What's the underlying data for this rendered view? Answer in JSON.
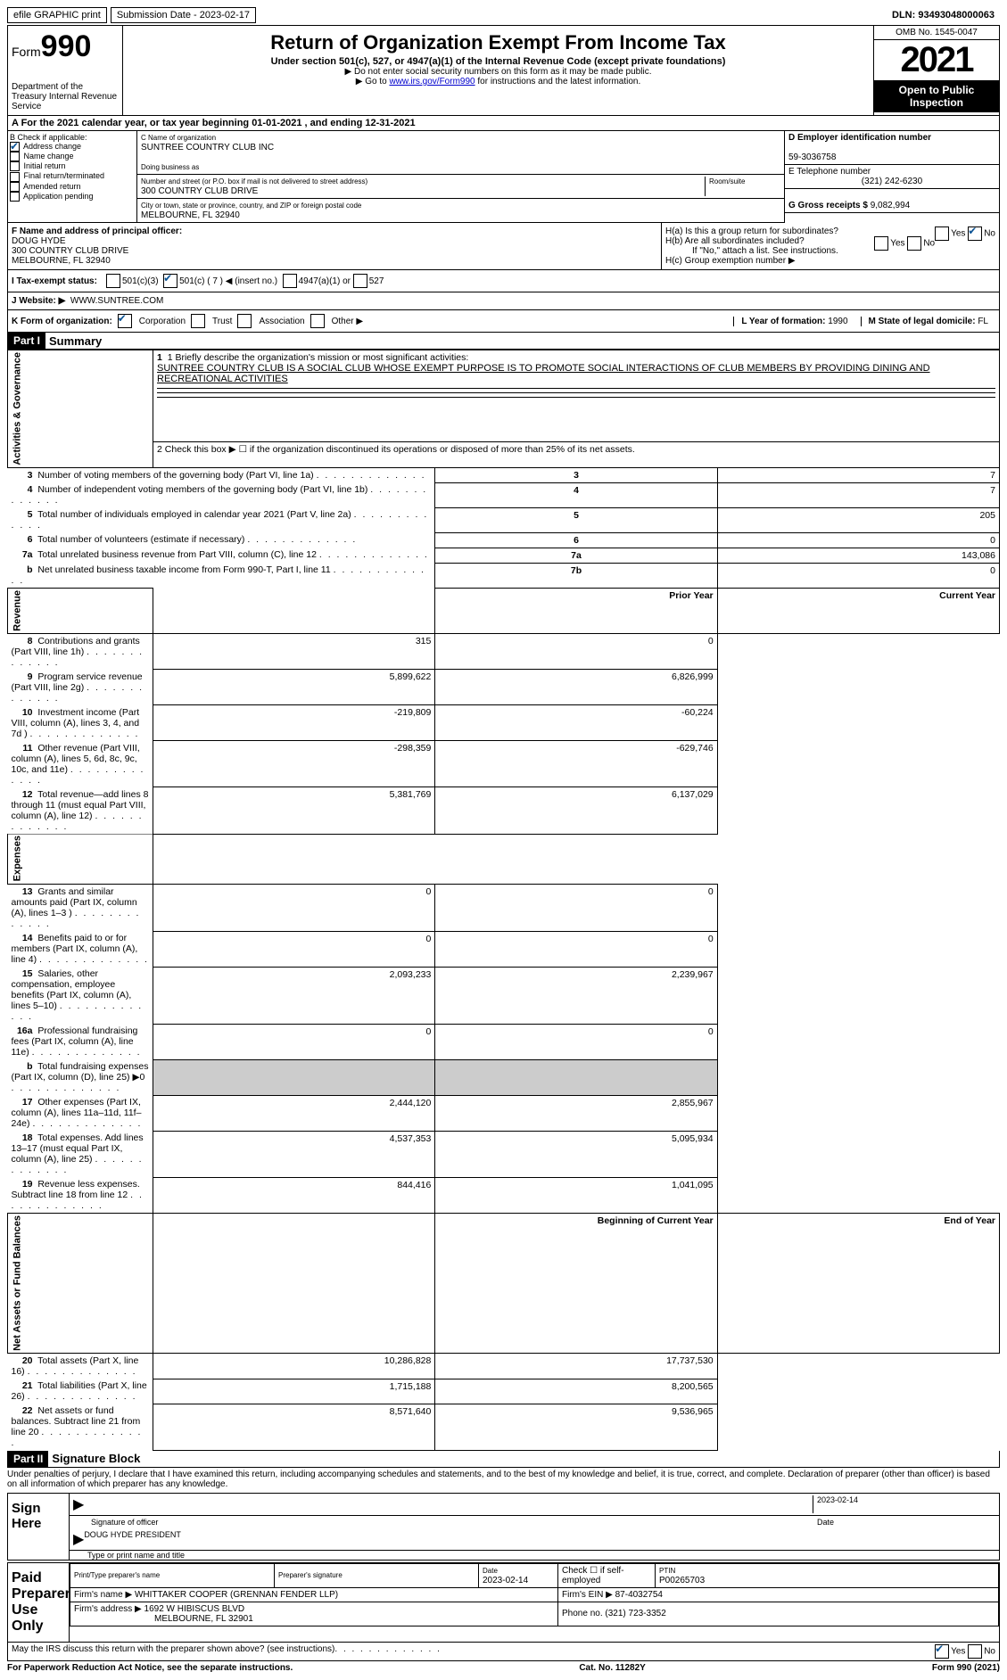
{
  "topbar": {
    "efile": "efile GRAPHIC print",
    "submission_label": "Submission Date - 2023-02-17",
    "dln_label": "DLN: 93493048000063"
  },
  "header": {
    "form_prefix": "Form",
    "form_no": "990",
    "dept": "Department of the Treasury Internal Revenue Service",
    "title": "Return of Organization Exempt From Income Tax",
    "subtitle": "Under section 501(c), 527, or 4947(a)(1) of the Internal Revenue Code (except private foundations)",
    "note1": "▶ Do not enter social security numbers on this form as it may be made public.",
    "note2_pre": "▶ Go to ",
    "note2_link": "www.irs.gov/Form990",
    "note2_post": " for instructions and the latest information.",
    "omb": "OMB No. 1545-0047",
    "year": "2021",
    "open": "Open to Public Inspection"
  },
  "period": "A For the 2021 calendar year, or tax year beginning 01-01-2021    , and ending 12-31-2021",
  "box_b": {
    "label": "B Check if applicable:",
    "items": [
      "Address change",
      "Name change",
      "Initial return",
      "Final return/terminated",
      "Amended return",
      "Application pending"
    ],
    "checked": [
      true,
      false,
      false,
      false,
      false,
      false
    ]
  },
  "box_c": {
    "name_label": "C Name of organization",
    "name": "SUNTREE COUNTRY CLUB INC",
    "dba_label": "Doing business as",
    "street_label": "Number and street (or P.O. box if mail is not delivered to street address)",
    "room_label": "Room/suite",
    "street": "300 COUNTRY CLUB DRIVE",
    "city_label": "City or town, state or province, country, and ZIP or foreign postal code",
    "city": "MELBOURNE, FL  32940"
  },
  "box_d": {
    "label": "D Employer identification number",
    "value": "59-3036758"
  },
  "box_e": {
    "label": "E Telephone number",
    "value": "(321) 242-6230"
  },
  "box_g": {
    "label": "G Gross receipts $",
    "value": "9,082,994"
  },
  "box_f": {
    "label": "F  Name and address of principal officer:",
    "name": "DOUG HYDE",
    "street": "300 COUNTRY CLUB DRIVE",
    "city": "MELBOURNE, FL  32940"
  },
  "box_h": {
    "a_label": "H(a)  Is this a group return for subordinates?",
    "a_no": true,
    "b_label": "H(b)  Are all subordinates included?",
    "b_note": "If \"No,\" attach a list. See instructions.",
    "c_label": "H(c)  Group exemption number ▶"
  },
  "box_i": {
    "label": "I   Tax-exempt status:",
    "c7_checked": true,
    "opts": [
      "501(c)(3)",
      "501(c) ( 7 ) ◀ (insert no.)",
      "4947(a)(1) or",
      "527"
    ]
  },
  "box_j": {
    "label": "J   Website: ▶",
    "value": "WWW.SUNTREE.COM"
  },
  "box_k": {
    "label": "K Form of organization:",
    "corp_checked": true,
    "opts": [
      "Corporation",
      "Trust",
      "Association",
      "Other ▶"
    ]
  },
  "box_l": {
    "label": "L Year of formation:",
    "value": "1990"
  },
  "box_m": {
    "label": "M State of legal domicile:",
    "value": "FL"
  },
  "part1": {
    "header": "Part I",
    "title": "Summary"
  },
  "line1": {
    "label": "1   Briefly describe the organization's mission or most significant activities:",
    "text": "SUNTREE COUNTRY CLUB IS A SOCIAL CLUB WHOSE EXEMPT PURPOSE IS TO PROMOTE SOCIAL INTERACTIONS OF CLUB MEMBERS BY PROVIDING DINING AND RECREATIONAL ACTIVITIES"
  },
  "line2": "2    Check this box ▶ ☐ if the organization discontinued its operations or disposed of more than 25% of its net assets.",
  "gov_lines": [
    {
      "no": "3",
      "desc": "Number of voting members of the governing body (Part VI, line 1a)",
      "box": "3",
      "val": "7"
    },
    {
      "no": "4",
      "desc": "Number of independent voting members of the governing body (Part VI, line 1b)",
      "box": "4",
      "val": "7"
    },
    {
      "no": "5",
      "desc": "Total number of individuals employed in calendar year 2021 (Part V, line 2a)",
      "box": "5",
      "val": "205"
    },
    {
      "no": "6",
      "desc": "Total number of volunteers (estimate if necessary)",
      "box": "6",
      "val": "0"
    },
    {
      "no": "7a",
      "desc": "Total unrelated business revenue from Part VIII, column (C), line 12",
      "box": "7a",
      "val": "143,086"
    },
    {
      "no": "b",
      "desc": "Net unrelated business taxable income from Form 990-T, Part I, line 11",
      "box": "7b",
      "val": "0"
    }
  ],
  "col_headers": {
    "prior": "Prior Year",
    "current": "Current Year"
  },
  "revenue": [
    {
      "no": "8",
      "desc": "Contributions and grants (Part VIII, line 1h)",
      "prior": "315",
      "curr": "0"
    },
    {
      "no": "9",
      "desc": "Program service revenue (Part VIII, line 2g)",
      "prior": "5,899,622",
      "curr": "6,826,999"
    },
    {
      "no": "10",
      "desc": "Investment income (Part VIII, column (A), lines 3, 4, and 7d )",
      "prior": "-219,809",
      "curr": "-60,224"
    },
    {
      "no": "11",
      "desc": "Other revenue (Part VIII, column (A), lines 5, 6d, 8c, 9c, 10c, and 11e)",
      "prior": "-298,359",
      "curr": "-629,746"
    },
    {
      "no": "12",
      "desc": "Total revenue—add lines 8 through 11 (must equal Part VIII, column (A), line 12)",
      "prior": "5,381,769",
      "curr": "6,137,029"
    }
  ],
  "expenses": [
    {
      "no": "13",
      "desc": "Grants and similar amounts paid (Part IX, column (A), lines 1–3 )",
      "prior": "0",
      "curr": "0"
    },
    {
      "no": "14",
      "desc": "Benefits paid to or for members (Part IX, column (A), line 4)",
      "prior": "0",
      "curr": "0"
    },
    {
      "no": "15",
      "desc": "Salaries, other compensation, employee benefits (Part IX, column (A), lines 5–10)",
      "prior": "2,093,233",
      "curr": "2,239,967"
    },
    {
      "no": "16a",
      "desc": "Professional fundraising fees (Part IX, column (A), line 11e)",
      "prior": "0",
      "curr": "0"
    },
    {
      "no": "b",
      "desc": "Total fundraising expenses (Part IX, column (D), line 25) ▶0",
      "prior": "",
      "curr": "",
      "shaded": true
    },
    {
      "no": "17",
      "desc": "Other expenses (Part IX, column (A), lines 11a–11d, 11f–24e)",
      "prior": "2,444,120",
      "curr": "2,855,967"
    },
    {
      "no": "18",
      "desc": "Total expenses. Add lines 13–17 (must equal Part IX, column (A), line 25)",
      "prior": "4,537,353",
      "curr": "5,095,934"
    },
    {
      "no": "19",
      "desc": "Revenue less expenses. Subtract line 18 from line 12",
      "prior": "844,416",
      "curr": "1,041,095"
    }
  ],
  "net_headers": {
    "beg": "Beginning of Current Year",
    "end": "End of Year"
  },
  "netassets": [
    {
      "no": "20",
      "desc": "Total assets (Part X, line 16)",
      "prior": "10,286,828",
      "curr": "17,737,530"
    },
    {
      "no": "21",
      "desc": "Total liabilities (Part X, line 26)",
      "prior": "1,715,188",
      "curr": "8,200,565"
    },
    {
      "no": "22",
      "desc": "Net assets or fund balances. Subtract line 21 from line 20",
      "prior": "8,571,640",
      "curr": "9,536,965"
    }
  ],
  "part2": {
    "header": "Part II",
    "title": "Signature Block"
  },
  "penalty": "Under penalties of perjury, I declare that I have examined this return, including accompanying schedules and statements, and to the best of my knowledge and belief, it is true, correct, and complete. Declaration of preparer (other than officer) is based on all information of which preparer has any knowledge.",
  "sign": {
    "label": "Sign Here",
    "date": "2023-02-14",
    "sig_label": "Signature of officer",
    "date_label": "Date",
    "name": "DOUG HYDE  PRESIDENT",
    "name_label": "Type or print name and title"
  },
  "preparer": {
    "label": "Paid Preparer Use Only",
    "print_name_label": "Print/Type preparer's name",
    "sig_label": "Preparer's signature",
    "date_label": "Date",
    "date": "2023-02-14",
    "check_label": "Check ☐ if self-employed",
    "ptin_label": "PTIN",
    "ptin": "P00265703",
    "firm_name_label": "Firm's name   ▶",
    "firm_name": "WHITTAKER COOPER (GRENNAN FENDER LLP)",
    "firm_ein_label": "Firm's EIN ▶",
    "firm_ein": "87-4032754",
    "firm_addr_label": "Firm's address ▶",
    "firm_addr1": "1692 W HIBISCUS BLVD",
    "firm_addr2": "MELBOURNE, FL  32901",
    "phone_label": "Phone no.",
    "phone": "(321) 723-3352"
  },
  "discuss": {
    "q": "May the IRS discuss this return with the preparer shown above? (see instructions)",
    "yes_checked": true
  },
  "footer": {
    "left": "For Paperwork Reduction Act Notice, see the separate instructions.",
    "mid": "Cat. No. 11282Y",
    "right": "Form 990 (2021)"
  },
  "vert_labels": {
    "gov": "Activities & Governance",
    "rev": "Revenue",
    "exp": "Expenses",
    "net": "Net Assets or Fund Balances"
  }
}
